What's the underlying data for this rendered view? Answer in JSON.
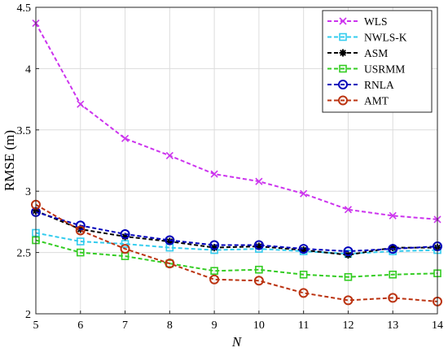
{
  "chart_data": {
    "type": "line",
    "title": "",
    "xlabel": "N",
    "ylabel": "RMSE (m)",
    "xlim": [
      5,
      14
    ],
    "ylim": [
      2,
      4.5
    ],
    "xticks": [
      "5",
      "6",
      "7",
      "8",
      "9",
      "10",
      "11",
      "12",
      "13",
      "14"
    ],
    "yticks": [
      "2",
      "2.5",
      "3",
      "3.5",
      "4",
      "4.5"
    ],
    "grid": true,
    "legend_position": "top-right",
    "x": [
      5,
      6,
      7,
      8,
      9,
      10,
      11,
      12,
      13,
      14
    ],
    "series": [
      {
        "name": "WLS",
        "color": "#cc33ee",
        "marker": "x",
        "values": [
          4.37,
          3.71,
          3.43,
          3.29,
          3.14,
          3.08,
          2.98,
          2.85,
          2.8,
          2.77
        ]
      },
      {
        "name": "NWLS-K",
        "color": "#33ccee",
        "marker": "square",
        "values": [
          2.66,
          2.59,
          2.57,
          2.54,
          2.52,
          2.53,
          2.51,
          2.49,
          2.51,
          2.52
        ]
      },
      {
        "name": "ASM",
        "color": "#000000",
        "marker": "star",
        "values": [
          2.84,
          2.69,
          2.63,
          2.59,
          2.54,
          2.55,
          2.52,
          2.48,
          2.54,
          2.54
        ]
      },
      {
        "name": "USRMM",
        "color": "#33cc22",
        "marker": "square",
        "values": [
          2.6,
          2.5,
          2.47,
          2.41,
          2.35,
          2.36,
          2.32,
          2.3,
          2.32,
          2.33
        ]
      },
      {
        "name": "RNLA",
        "color": "#0000bb",
        "marker": "circle",
        "values": [
          2.83,
          2.72,
          2.65,
          2.6,
          2.56,
          2.56,
          2.53,
          2.51,
          2.53,
          2.55
        ]
      },
      {
        "name": "AMT",
        "color": "#bb3311",
        "marker": "circle",
        "values": [
          2.89,
          2.68,
          2.53,
          2.41,
          2.28,
          2.27,
          2.17,
          2.11,
          2.13,
          2.1
        ]
      }
    ]
  }
}
